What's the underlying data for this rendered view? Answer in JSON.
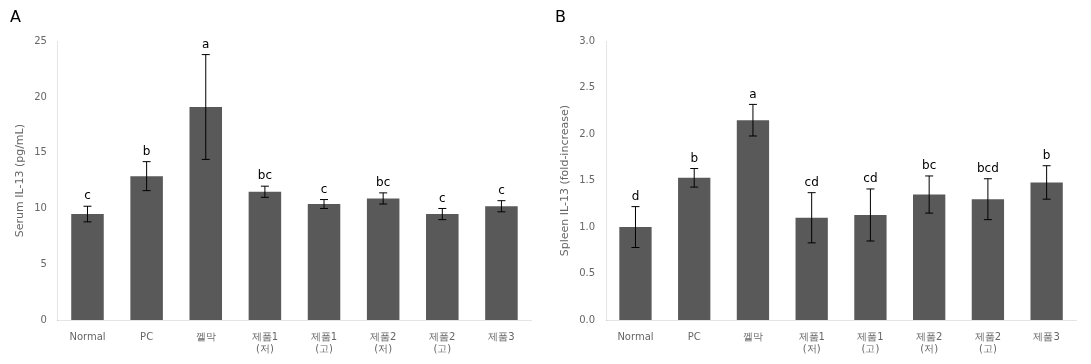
{
  "chart_data": [
    {
      "type": "bar",
      "title": "A",
      "categories": [
        "Normal",
        "PC",
        "껠막",
        "제품1\n(저)",
        "제품1\n(고)",
        "제품2\n(저)",
        "제품2\n(고)",
        "제품3"
      ],
      "values": [
        9.5,
        12.9,
        19.1,
        11.5,
        10.4,
        10.9,
        9.5,
        10.2
      ],
      "errors": [
        0.7,
        1.3,
        4.7,
        0.5,
        0.4,
        0.5,
        0.5,
        0.5
      ],
      "annotations": [
        "c",
        "b",
        "a",
        "bc",
        "c",
        "bc",
        "c",
        "c"
      ],
      "ylabel": "Serum IL-13 (pg/mL)",
      "ylim": [
        0,
        25
      ],
      "yticks": [
        0,
        5,
        10,
        15,
        20,
        25
      ],
      "color": "#595959",
      "grid": false
    },
    {
      "type": "bar",
      "title": "B",
      "categories": [
        "Normal",
        "PC",
        "껠막",
        "제품1\n(저)",
        "제품1\n(고)",
        "제품2\n(저)",
        "제품2\n(고)",
        "제품3"
      ],
      "values": [
        1.0,
        1.53,
        2.15,
        1.1,
        1.13,
        1.35,
        1.3,
        1.48
      ],
      "errors": [
        0.22,
        0.1,
        0.17,
        0.27,
        0.28,
        0.2,
        0.22,
        0.18
      ],
      "annotations": [
        "d",
        "b",
        "a",
        "cd",
        "cd",
        "bc",
        "bcd",
        "b"
      ],
      "ylabel": "Spleen IL-13 (fold-increase)",
      "ylim": [
        0,
        3
      ],
      "yticks": [
        {
          "value": 0,
          "label": "0.0"
        },
        0.5,
        {
          "value": 1.0,
          "label": "1.0"
        },
        1.5,
        {
          "value": 2.0,
          "label": "2.0"
        },
        2.5,
        {
          "value": 3.0,
          "label": "3.0"
        }
      ],
      "color": "#595959",
      "grid": false
    }
  ]
}
